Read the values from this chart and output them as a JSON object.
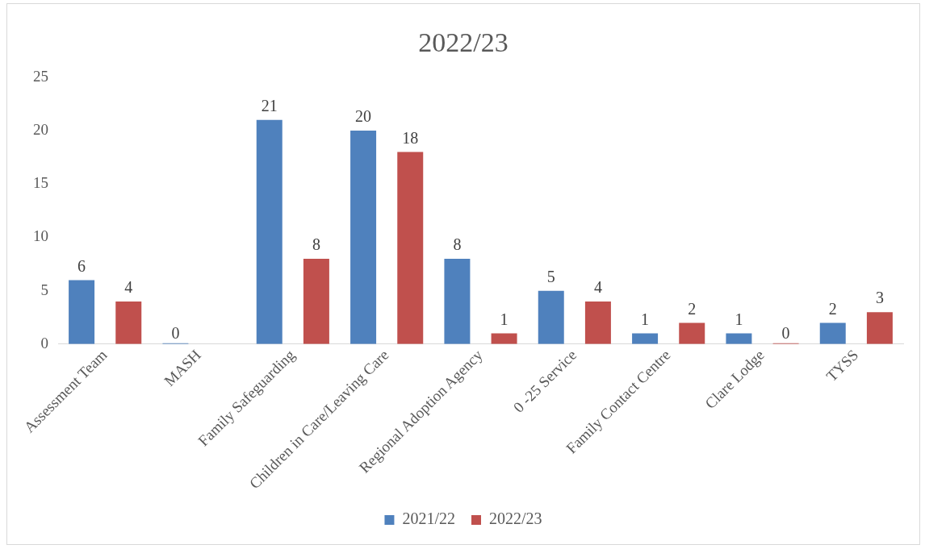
{
  "chart_data": {
    "type": "bar",
    "title": "2022/23",
    "categories": [
      "Assessment Team",
      "MASH",
      "Family Safeguarding",
      "Children in Care/Leaving Care",
      "Regional Adoption Agency",
      "0 -25 Service",
      "Family Contact Centre",
      "Clare Lodge",
      "TYSS"
    ],
    "series": [
      {
        "name": "2021/22",
        "color": "#4f81bd",
        "values": [
          6,
          0,
          21,
          20,
          8,
          5,
          1,
          1,
          2
        ]
      },
      {
        "name": "2022/23",
        "color": "#c0504d",
        "values": [
          4,
          null,
          8,
          18,
          1,
          4,
          2,
          0,
          3
        ]
      }
    ],
    "ylim": [
      0,
      25
    ],
    "yticks": [
      0,
      5,
      10,
      15,
      20,
      25
    ],
    "grid": false,
    "legend": "bottom",
    "data_labels": true
  }
}
